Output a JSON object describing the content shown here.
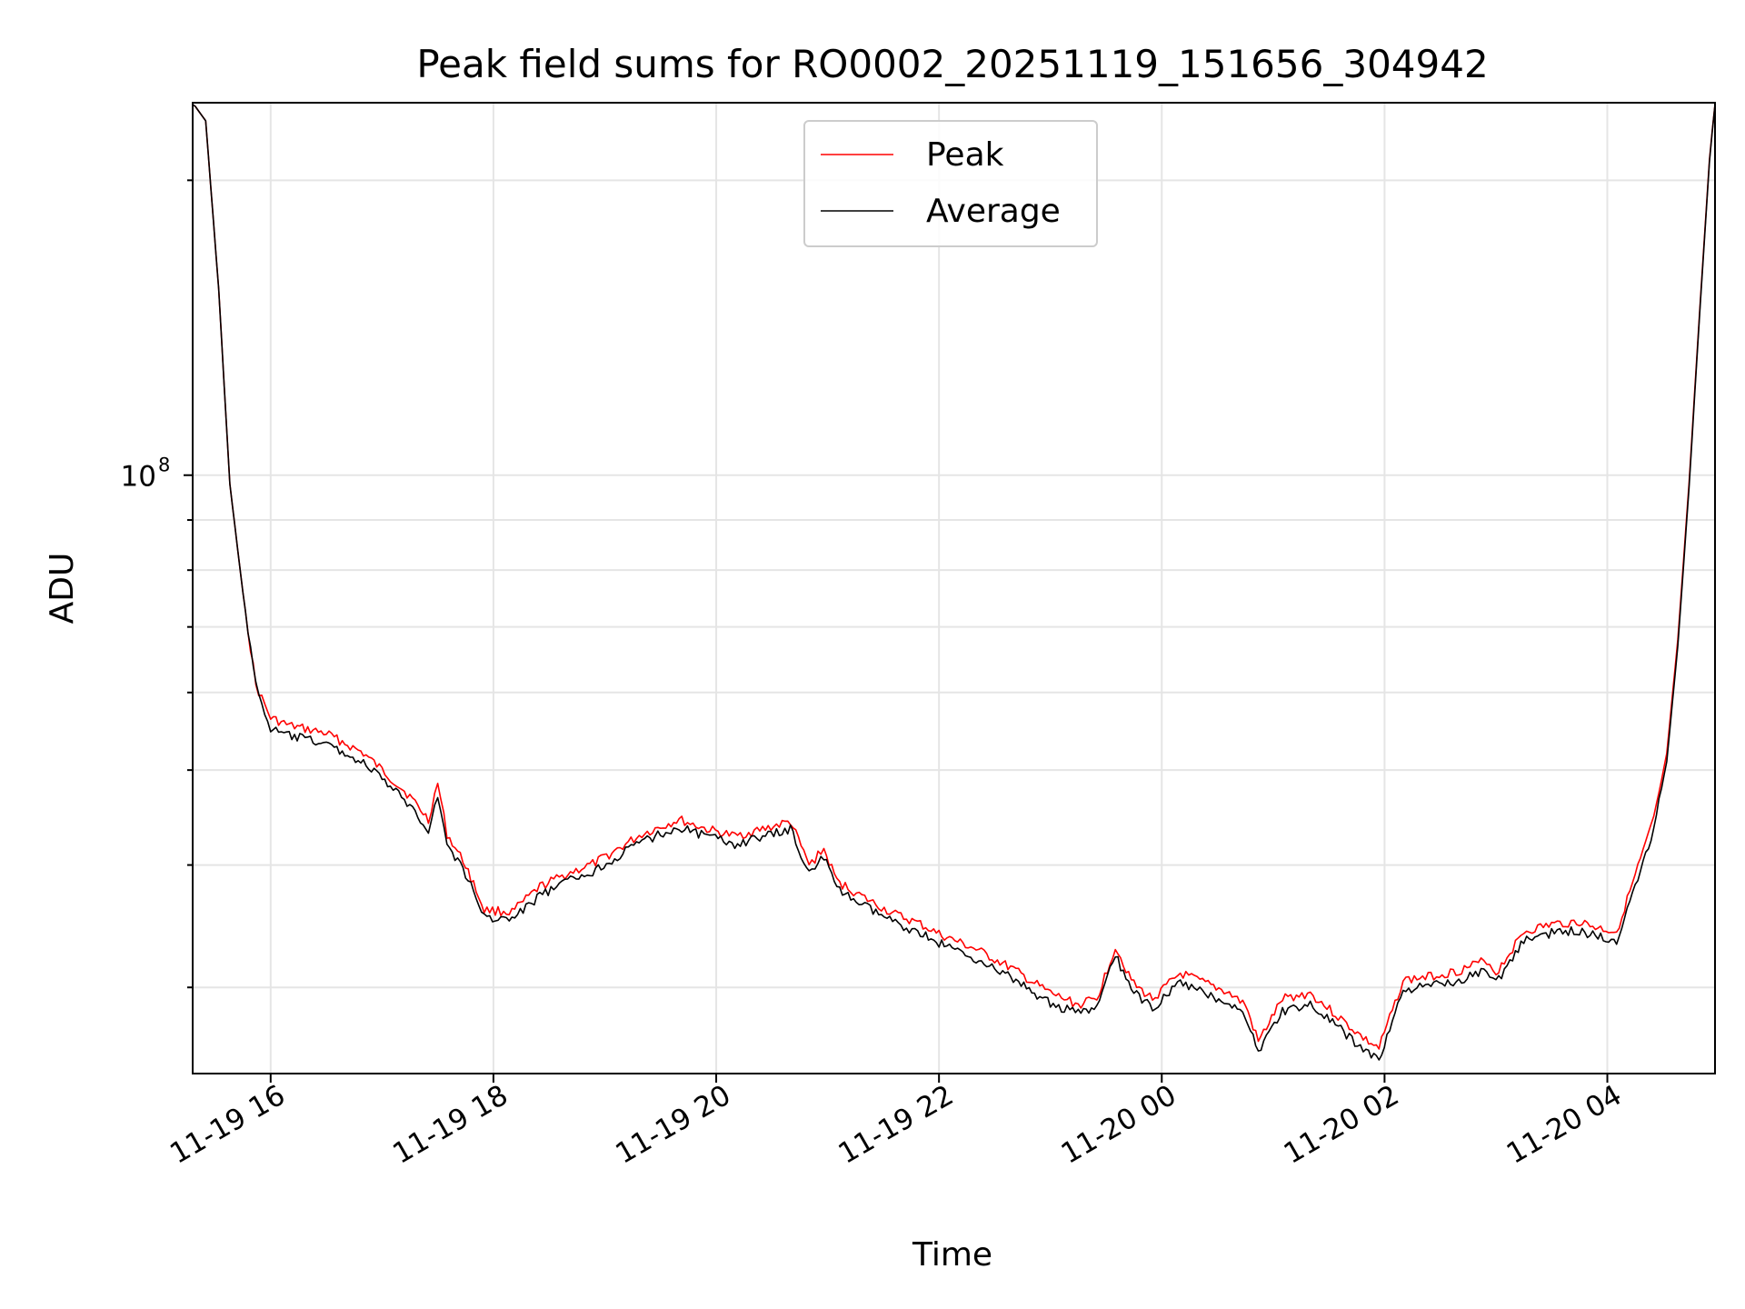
{
  "chart_data": {
    "type": "line",
    "title": "Peak field sums for RO0002_20251119_151656_304942",
    "xlabel": "Time",
    "ylabel": "ADU",
    "yscale": "log",
    "grid": true,
    "legend_position": "top-center",
    "xlim": [
      "2025-11-19 15:18",
      "2025-11-20 04:58"
    ],
    "ylim": [
      24500000,
      240000000
    ],
    "x_ticks": [
      "11-19 16",
      "11-19 18",
      "11-19 20",
      "11-19 22",
      "11-20 00",
      "11-20 02",
      "11-20 04"
    ],
    "y_ticks": [
      {
        "label": "10",
        "exponent": "8"
      }
    ],
    "series": [
      {
        "name": "Peak",
        "color": "#ff0000",
        "x": [
          "2025-11-19 15:18",
          "2025-11-19 15:25",
          "2025-11-19 15:32",
          "2025-11-19 15:38",
          "2025-11-19 15:45",
          "2025-11-19 15:52",
          "2025-11-19 16:00",
          "2025-11-19 16:10",
          "2025-11-19 16:30",
          "2025-11-19 16:50",
          "2025-11-19 17:00",
          "2025-11-19 17:15",
          "2025-11-19 17:25",
          "2025-11-19 17:30",
          "2025-11-19 17:35",
          "2025-11-19 17:45",
          "2025-11-19 17:55",
          "2025-11-19 18:10",
          "2025-11-19 18:25",
          "2025-11-19 18:40",
          "2025-11-19 18:55",
          "2025-11-19 19:20",
          "2025-11-19 19:40",
          "2025-11-19 19:55",
          "2025-11-19 20:10",
          "2025-11-19 20:25",
          "2025-11-19 20:40",
          "2025-11-19 20:50",
          "2025-11-19 20:58",
          "2025-11-19 21:05",
          "2025-11-19 21:20",
          "2025-11-19 21:35",
          "2025-11-19 21:50",
          "2025-11-19 22:00",
          "2025-11-19 22:20",
          "2025-11-19 22:40",
          "2025-11-19 22:50",
          "2025-11-19 23:00",
          "2025-11-19 23:15",
          "2025-11-19 23:25",
          "2025-11-19 23:35",
          "2025-11-19 23:45",
          "2025-11-19 23:55",
          "2025-11-20 00:10",
          "2025-11-20 00:25",
          "2025-11-20 00:35",
          "2025-11-20 00:45",
          "2025-11-20 00:52",
          "2025-11-20 01:05",
          "2025-11-20 01:20",
          "2025-11-20 01:35",
          "2025-11-20 01:50",
          "2025-11-20 01:57",
          "2025-11-20 02:10",
          "2025-11-20 02:25",
          "2025-11-20 02:40",
          "2025-11-20 02:55",
          "2025-11-20 03:00",
          "2025-11-20 03:15",
          "2025-11-20 03:30",
          "2025-11-20 03:45",
          "2025-11-20 03:55",
          "2025-11-20 04:05",
          "2025-11-20 04:15",
          "2025-11-20 04:25",
          "2025-11-20 04:32",
          "2025-11-20 04:38",
          "2025-11-20 04:44",
          "2025-11-20 04:50",
          "2025-11-20 04:55",
          "2025-11-20 04:58"
        ],
        "values": [
          240000000,
          230000000,
          155000000,
          98000000,
          76000000,
          61000000,
          56500000,
          55500000,
          54500000,
          52000000,
          50000000,
          47000000,
          44500000,
          48500000,
          43000000,
          40000000,
          36000000,
          35800000,
          38000000,
          39200000,
          40200000,
          43000000,
          44500000,
          43500000,
          42800000,
          43500000,
          44300000,
          40000000,
          41500000,
          38500000,
          37000000,
          35700000,
          34800000,
          34000000,
          32800000,
          31300000,
          30400000,
          29600000,
          28800000,
          29200000,
          33000000,
          30200000,
          29200000,
          31000000,
          30200000,
          29700000,
          28800000,
          26400000,
          29200000,
          29600000,
          28000000,
          26500000,
          26000000,
          30500000,
          30800000,
          31200000,
          32000000,
          31000000,
          34200000,
          34800000,
          35000000,
          34500000,
          34200000,
          39000000,
          44500000,
          52000000,
          68000000,
          98000000,
          150000000,
          210000000,
          240000000
        ]
      },
      {
        "name": "Average",
        "color": "#000000",
        "x": [
          "2025-11-19 15:18",
          "2025-11-19 15:25",
          "2025-11-19 15:32",
          "2025-11-19 15:38",
          "2025-11-19 15:45",
          "2025-11-19 15:52",
          "2025-11-19 16:00",
          "2025-11-19 16:10",
          "2025-11-19 16:30",
          "2025-11-19 16:50",
          "2025-11-19 17:00",
          "2025-11-19 17:15",
          "2025-11-19 17:25",
          "2025-11-19 17:30",
          "2025-11-19 17:35",
          "2025-11-19 17:45",
          "2025-11-19 17:55",
          "2025-11-19 18:10",
          "2025-11-19 18:25",
          "2025-11-19 18:40",
          "2025-11-19 18:55",
          "2025-11-19 19:20",
          "2025-11-19 19:40",
          "2025-11-19 19:55",
          "2025-11-19 20:10",
          "2025-11-19 20:25",
          "2025-11-19 20:40",
          "2025-11-19 20:50",
          "2025-11-19 20:58",
          "2025-11-19 21:05",
          "2025-11-19 21:20",
          "2025-11-19 21:35",
          "2025-11-19 21:50",
          "2025-11-19 22:00",
          "2025-11-19 22:20",
          "2025-11-19 22:40",
          "2025-11-19 22:50",
          "2025-11-19 23:00",
          "2025-11-19 23:15",
          "2025-11-19 23:25",
          "2025-11-19 23:35",
          "2025-11-19 23:45",
          "2025-11-19 23:55",
          "2025-11-20 00:10",
          "2025-11-20 00:25",
          "2025-11-20 00:35",
          "2025-11-20 00:45",
          "2025-11-20 00:52",
          "2025-11-20 01:05",
          "2025-11-20 01:20",
          "2025-11-20 01:35",
          "2025-11-20 01:50",
          "2025-11-20 01:57",
          "2025-11-20 02:10",
          "2025-11-20 02:25",
          "2025-11-20 02:40",
          "2025-11-20 02:55",
          "2025-11-20 03:00",
          "2025-11-20 03:15",
          "2025-11-20 03:30",
          "2025-11-20 03:45",
          "2025-11-20 03:55",
          "2025-11-20 04:05",
          "2025-11-20 04:15",
          "2025-11-20 04:25",
          "2025-11-20 04:32",
          "2025-11-20 04:38",
          "2025-11-20 04:44",
          "2025-11-20 04:50",
          "2025-11-20 04:55",
          "2025-11-20 04:58"
        ],
        "values": [
          240000000,
          230000000,
          155000000,
          98000000,
          76000000,
          61000000,
          55000000,
          54200000,
          53200000,
          50800000,
          49000000,
          46000000,
          43500000,
          47000000,
          42000000,
          39200000,
          35400000,
          35200000,
          37200000,
          38500000,
          39500000,
          42300000,
          43700000,
          42800000,
          42000000,
          42700000,
          43500000,
          39300000,
          40800000,
          37800000,
          36300000,
          35000000,
          34100000,
          33300000,
          32100000,
          30600000,
          29700000,
          28900000,
          28200000,
          28600000,
          32300000,
          29600000,
          28600000,
          30300000,
          29500000,
          29000000,
          28100000,
          25800000,
          28400000,
          28800000,
          27300000,
          25800000,
          25300000,
          29800000,
          30100000,
          30500000,
          31300000,
          30300000,
          33500000,
          34100000,
          34300000,
          33800000,
          33500000,
          38200000,
          43600000,
          51000000,
          67000000,
          97000000,
          149000000,
          209000000,
          240000000
        ]
      }
    ]
  }
}
